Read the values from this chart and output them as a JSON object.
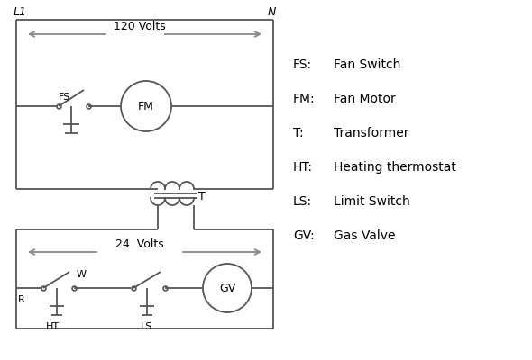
{
  "background_color": "#ffffff",
  "line_color": "#555555",
  "arrow_color": "#888888",
  "text_color": "#000000",
  "legend_items": [
    [
      "FS:",
      "Fan Switch"
    ],
    [
      "FM:",
      "Fan Motor"
    ],
    [
      "T:",
      "Transformer"
    ],
    [
      "HT:",
      "Heating thermostat"
    ],
    [
      "LS:",
      "Limit Switch"
    ],
    [
      "GV:",
      "Gas Valve"
    ]
  ],
  "L1_label": "L1",
  "N_label": "N",
  "volts_120": "120 Volts",
  "volts_24": "24  Volts",
  "T_label": "T",
  "R_label": "R",
  "W_label": "W",
  "HT_label": "HT",
  "LS_label": "LS",
  "FS_label": "FS",
  "FM_label": "FM",
  "GV_label": "GV"
}
